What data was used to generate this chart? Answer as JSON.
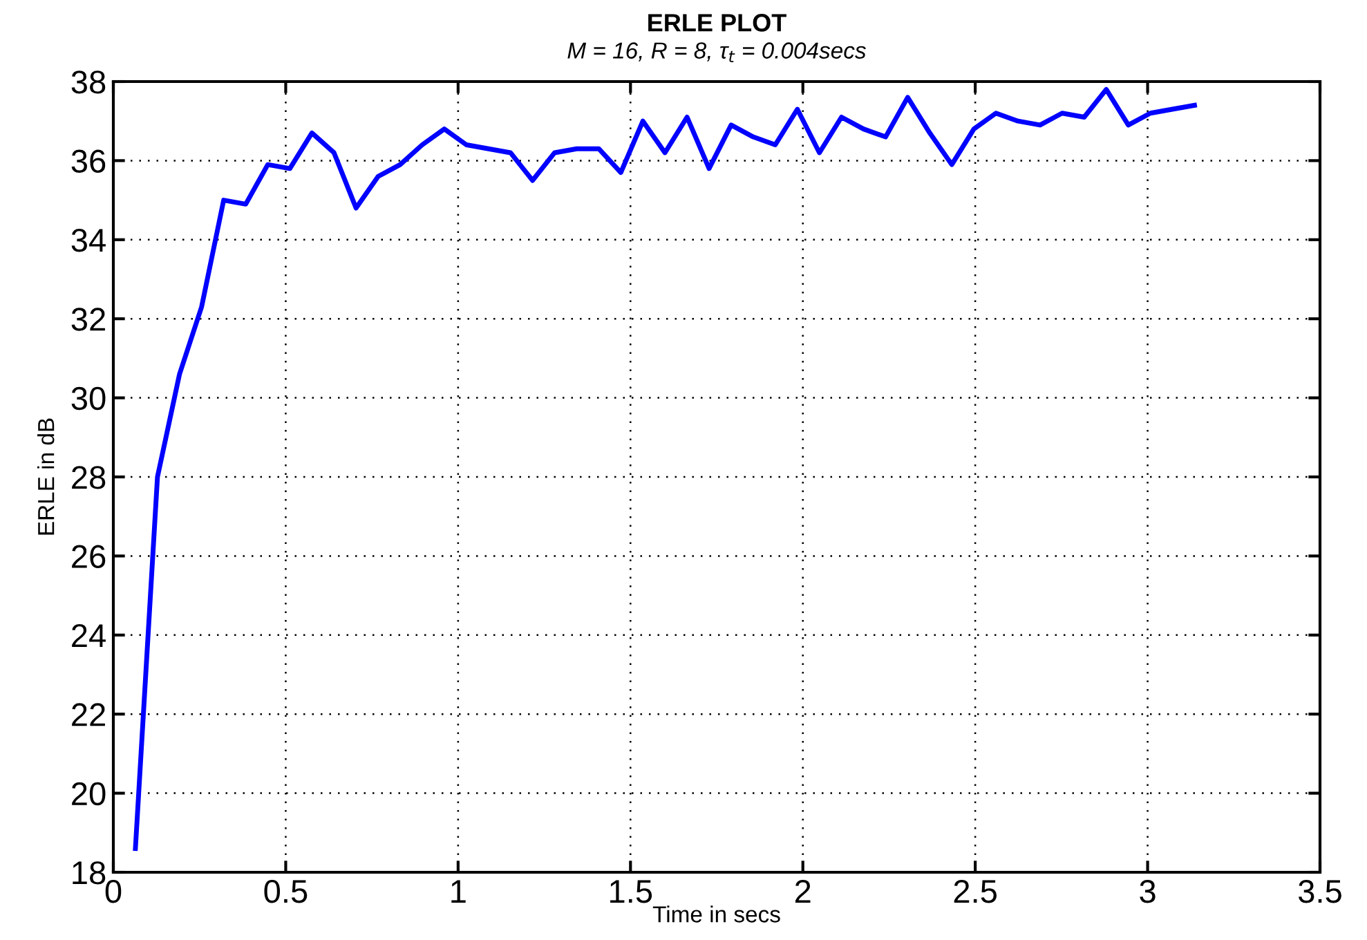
{
  "chart_data": {
    "type": "line",
    "title": "ERLE PLOT",
    "subtitle": "M = 16, R = 8, τ$_{t}$ = 0.004secs",
    "xlabel": "Time in secs",
    "ylabel": "ERLE in dB",
    "xlim": [
      0,
      3.5
    ],
    "xticks": [
      0,
      0.5,
      1,
      1.5,
      2,
      2.5,
      3,
      3.5
    ],
    "ylim": [
      18,
      38
    ],
    "yticks": [
      18,
      20,
      22,
      24,
      26,
      28,
      30,
      32,
      34,
      36,
      38
    ],
    "grid": true,
    "marker": "none",
    "line_style": "solid",
    "series": [
      {
        "color": "#0000ff",
        "x": [
          0.064,
          0.128,
          0.192,
          0.256,
          0.32,
          0.384,
          0.448,
          0.512,
          0.576,
          0.64,
          0.704,
          0.768,
          0.832,
          0.896,
          0.96,
          1.024,
          1.088,
          1.152,
          1.216,
          1.28,
          1.344,
          1.408,
          1.472,
          1.536,
          1.6,
          1.664,
          1.728,
          1.792,
          1.856,
          1.92,
          1.984,
          2.048,
          2.112,
          2.176,
          2.24,
          2.304,
          2.368,
          2.432,
          2.496,
          2.56,
          2.624,
          2.688,
          2.752,
          2.816,
          2.88,
          2.944,
          3.008,
          3.072,
          3.136
        ],
        "values": [
          18.6,
          28.0,
          30.6,
          32.3,
          35.0,
          34.9,
          35.9,
          35.8,
          36.7,
          36.2,
          34.8,
          35.6,
          35.9,
          36.4,
          36.8,
          36.4,
          36.3,
          36.2,
          35.5,
          36.2,
          36.3,
          36.3,
          35.7,
          37.0,
          36.2,
          37.1,
          35.8,
          36.9,
          36.6,
          36.4,
          37.3,
          36.2,
          37.1,
          36.8,
          36.6,
          37.6,
          36.7,
          35.9,
          36.8,
          37.2,
          37.0,
          36.9,
          37.2,
          37.1,
          37.8,
          36.9,
          37.2,
          37.3,
          37.4
        ]
      }
    ]
  }
}
